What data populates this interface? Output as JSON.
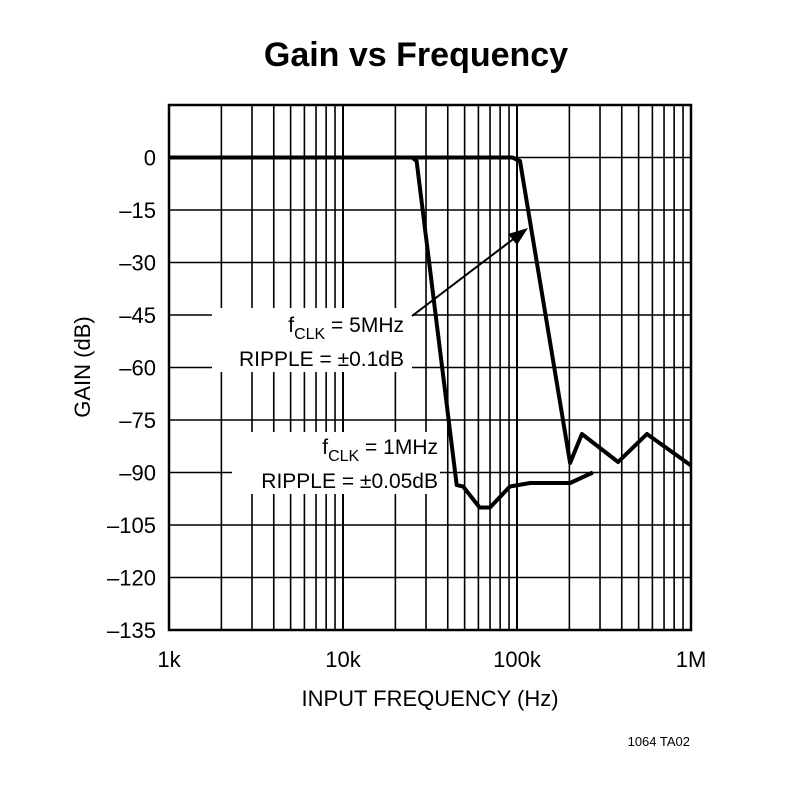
{
  "chart_data": {
    "type": "line",
    "title": "Gain vs Frequency",
    "xlabel": "INPUT FREQUENCY (Hz)",
    "ylabel": "GAIN (dB)",
    "xscale": "log",
    "xlim": [
      1000,
      1000000
    ],
    "ylim": [
      -135,
      15
    ],
    "grid": true,
    "x_ticks": [
      {
        "value": 1000,
        "label": "1k"
      },
      {
        "value": 10000,
        "label": "10k"
      },
      {
        "value": 100000,
        "label": "100k"
      },
      {
        "value": 1000000,
        "label": "1M"
      }
    ],
    "y_ticks": [
      {
        "value": 0,
        "label": "0"
      },
      {
        "value": -15,
        "label": "–15"
      },
      {
        "value": -30,
        "label": "–30"
      },
      {
        "value": -45,
        "label": "–45"
      },
      {
        "value": -60,
        "label": "–60"
      },
      {
        "value": -75,
        "label": "–75"
      },
      {
        "value": -90,
        "label": "–90"
      },
      {
        "value": -105,
        "label": "–105"
      },
      {
        "value": -120,
        "label": "–120"
      },
      {
        "value": -135,
        "label": "–135"
      }
    ],
    "series": [
      {
        "name": "fCLK = 1MHz",
        "x": [
          1000,
          25000,
          26500,
          45000,
          49000,
          61000,
          70000,
          91000,
          119000,
          202000,
          273000
        ],
        "y": [
          0,
          0,
          -1,
          -93.6,
          -94,
          -100,
          -100,
          -94,
          -93,
          -93,
          -90
        ]
      },
      {
        "name": "fCLK = 5MHz",
        "x": [
          1000,
          94000,
          104000,
          202000,
          236000,
          381000,
          558000,
          1000000
        ],
        "y": [
          0,
          0,
          -1,
          -87.3,
          -79,
          -87,
          -79,
          -88
        ]
      }
    ],
    "annotations": [
      {
        "f": "f",
        "sub": "CLK",
        "rest": " = 5MHz",
        "ripple": "RIPPLE = ±0.1dB"
      },
      {
        "f": "f",
        "sub": "CLK",
        "rest": " = 1MHz",
        "ripple": "RIPPLE = ±0.05dB"
      }
    ],
    "footnote": "1064 TA02"
  }
}
